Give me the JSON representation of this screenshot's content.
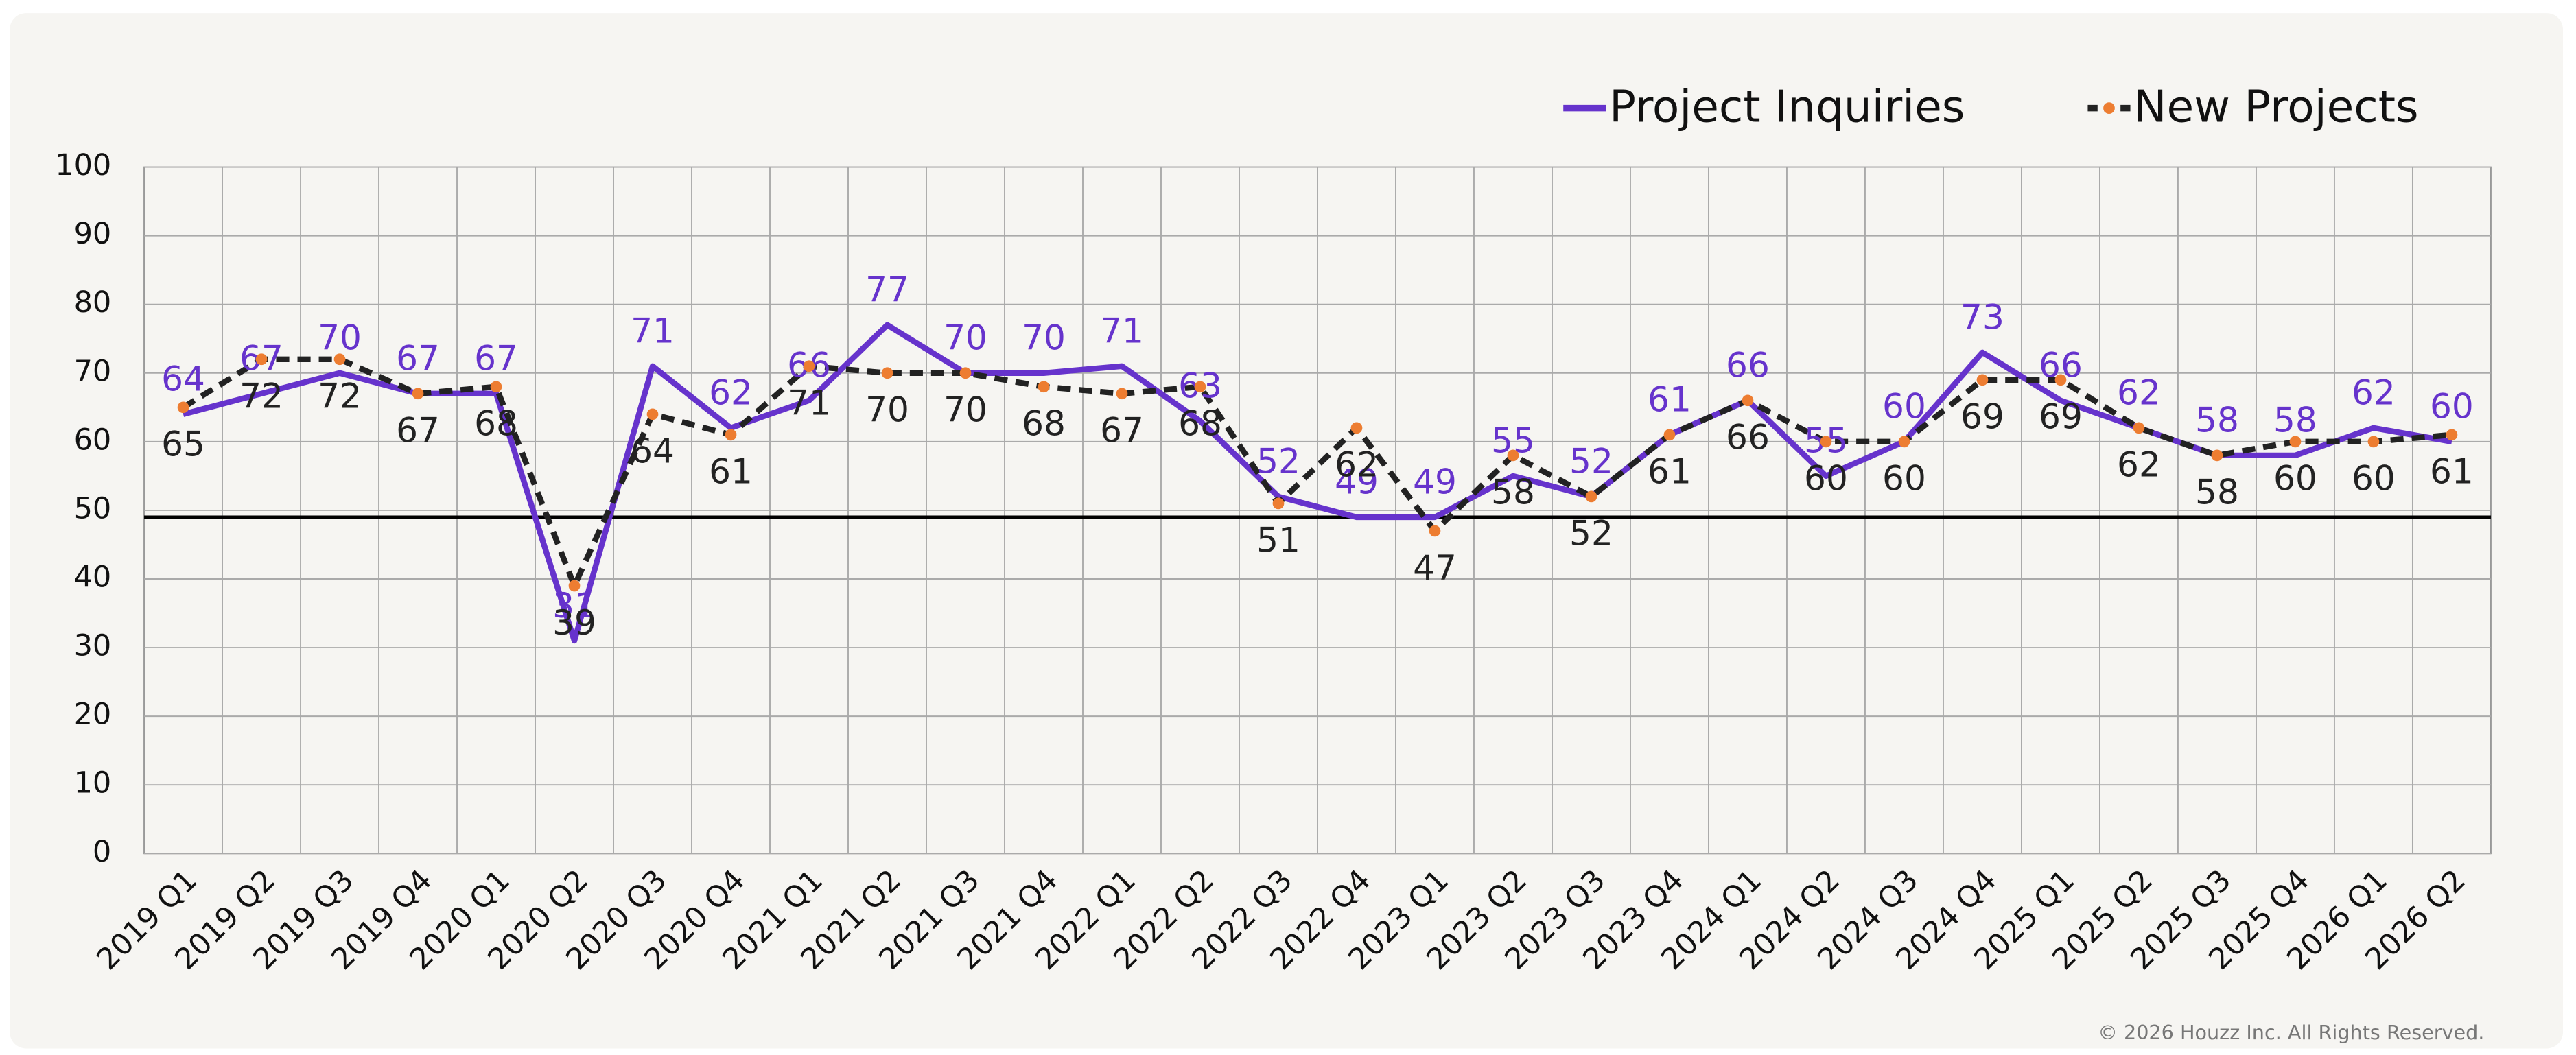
{
  "chart_data": {
    "type": "line",
    "categories": [
      "2019 Q1",
      "2019 Q2",
      "2019 Q3",
      "2019 Q4",
      "2020 Q1",
      "2020 Q2",
      "2020 Q3",
      "2020 Q4",
      "2021 Q1",
      "2021 Q2",
      "2021 Q3",
      "2021 Q4",
      "2022 Q1",
      "2022 Q2",
      "2022 Q3",
      "2022 Q4",
      "2023 Q1",
      "2023 Q2",
      "2023 Q3",
      "2023 Q4",
      "2024 Q1",
      "2024 Q2",
      "2024 Q3",
      "2024 Q4",
      "2025 Q1",
      "2025 Q2",
      "2025 Q3",
      "2025 Q4",
      "2026 Q1",
      "2026 Q2"
    ],
    "series": [
      {
        "name": "Project Inquiries",
        "color": "#6633cc",
        "values": [
          64,
          67,
          70,
          67,
          67,
          31,
          71,
          62,
          66,
          77,
          70,
          70,
          71,
          63,
          52,
          49,
          49,
          55,
          52,
          61,
          66,
          55,
          60,
          73,
          66,
          62,
          58,
          58,
          62,
          60
        ]
      },
      {
        "name": "New Projects",
        "color": "#222222",
        "marker_color": "#ed7d31",
        "dashed": true,
        "values": [
          65,
          72,
          72,
          67,
          68,
          39,
          64,
          61,
          71,
          70,
          70,
          68,
          67,
          68,
          51,
          62,
          47,
          58,
          52,
          61,
          66,
          60,
          60,
          69,
          69,
          62,
          58,
          60,
          60,
          61
        ]
      }
    ],
    "ylim": [
      0,
      100
    ],
    "yticks": [
      0,
      10,
      20,
      30,
      40,
      50,
      60,
      70,
      80,
      90,
      100
    ],
    "grid": true,
    "reference_line": 49,
    "legend": "top-right",
    "copyright": "© 2026 Houzz Inc. All Rights Reserved."
  }
}
